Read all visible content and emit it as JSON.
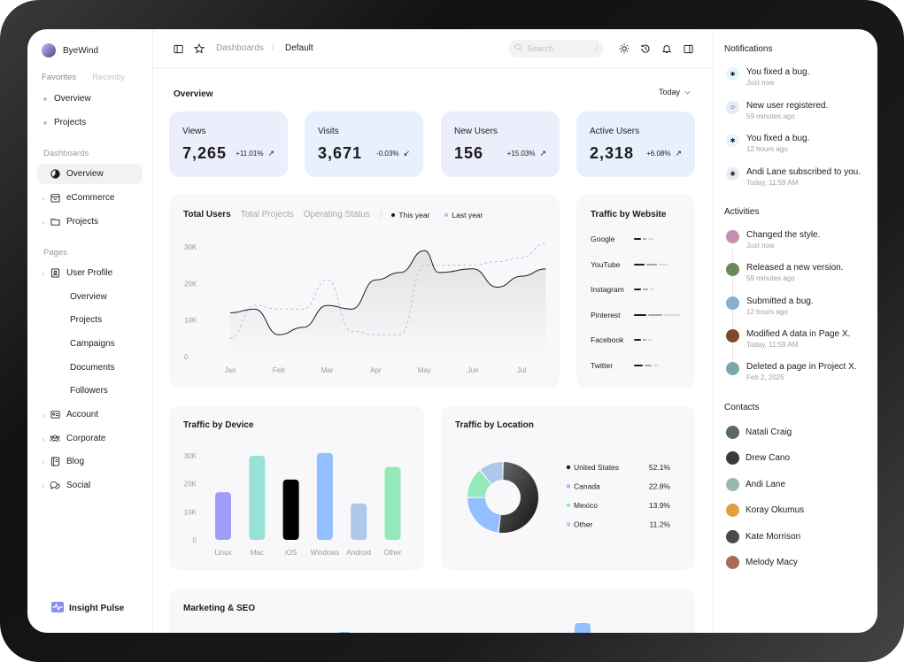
{
  "brand": {
    "name": "ByeWind"
  },
  "sidebar": {
    "tabs": [
      "Favorites",
      "Recently"
    ],
    "favorites": [
      "Overview",
      "Projects"
    ],
    "dashboards_title": "Dashboards",
    "dashboards": [
      {
        "label": "Overview",
        "icon": "pie-icon",
        "active": true
      },
      {
        "label": "eCommerce",
        "icon": "shop-icon"
      },
      {
        "label": "Projects",
        "icon": "folder-icon"
      }
    ],
    "pages_title": "Pages",
    "user_profile": {
      "label": "User Profile",
      "icon": "user-id-icon",
      "children": [
        "Overview",
        "Projects",
        "Campaigns",
        "Documents",
        "Followers"
      ]
    },
    "pages": [
      {
        "label": "Account",
        "icon": "id-card-icon"
      },
      {
        "label": "Corporate",
        "icon": "users-icon"
      },
      {
        "label": "Blog",
        "icon": "notebook-icon"
      },
      {
        "label": "Social",
        "icon": "chat-icon"
      }
    ],
    "footer": "Insight Pulse"
  },
  "header": {
    "breadcrumb": [
      "Dashboards",
      "/",
      "Default"
    ],
    "search_placeholder": "Search",
    "search_shortcut": "/"
  },
  "overview": {
    "title": "Overview",
    "range": "Today",
    "stats": [
      {
        "label": "Views",
        "value": "7,265",
        "change": "+11.01%",
        "trend": "up",
        "bg": "#edeefc"
      },
      {
        "label": "Visits",
        "value": "3,671",
        "change": "-0.03%",
        "trend": "down",
        "bg": "#e6f1fd"
      },
      {
        "label": "New Users",
        "value": "156",
        "change": "+15.03%",
        "trend": "up",
        "bg": "#edeefc"
      },
      {
        "label": "Active Users",
        "value": "2,318",
        "change": "+6.08%",
        "trend": "up",
        "bg": "#e6f1fd"
      }
    ]
  },
  "total_users": {
    "tabs": [
      "Total Users",
      "Total Projects",
      "Operating Status"
    ],
    "legend": [
      "This year",
      "Last year"
    ],
    "chart_data": {
      "type": "line",
      "x": [
        "Jan",
        "Feb",
        "Mar",
        "Apr",
        "May",
        "Jun",
        "Jul"
      ],
      "ylim": [
        0,
        30000
      ],
      "yticks": [
        "0",
        "10K",
        "20K",
        "30K"
      ],
      "series": [
        {
          "name": "This year",
          "x": [
            0,
            0.5,
            1,
            1.5,
            2,
            2.5,
            3,
            3.5,
            4,
            4.3,
            5,
            5.5,
            6,
            6.5
          ],
          "values": [
            12000,
            13000,
            6000,
            8000,
            14000,
            13000,
            21000,
            23000,
            29000,
            23000,
            24000,
            19000,
            22000,
            24000
          ],
          "color": "#1c1c1c"
        },
        {
          "name": "Last year",
          "x": [
            0,
            0.5,
            1,
            1.5,
            2,
            2.5,
            3,
            3.5,
            4,
            4.3,
            5,
            5.5,
            6,
            6.5
          ],
          "values": [
            5000,
            14000,
            13000,
            13000,
            21000,
            7000,
            6000,
            6000,
            25000,
            25000,
            25000,
            26000,
            27000,
            31000
          ],
          "color": "#a8c5da"
        }
      ]
    }
  },
  "traffic_website": {
    "title": "Traffic by Website",
    "sites": [
      {
        "name": "Google",
        "bars": [
          8,
          4,
          6
        ]
      },
      {
        "name": "YouTube",
        "bars": [
          12,
          12,
          10
        ]
      },
      {
        "name": "Instagram",
        "bars": [
          8,
          6,
          4
        ]
      },
      {
        "name": "Pinterest",
        "bars": [
          14,
          16,
          18
        ]
      },
      {
        "name": "Facebook",
        "bars": [
          8,
          4,
          4
        ]
      },
      {
        "name": "Twitter",
        "bars": [
          10,
          8,
          6
        ]
      }
    ]
  },
  "traffic_device": {
    "title": "Traffic by Device",
    "chart_data": {
      "type": "bar",
      "categories": [
        "Linux",
        "Mac",
        "iOS",
        "Windows",
        "Android",
        "Other"
      ],
      "values": [
        17000,
        30000,
        21500,
        31000,
        13000,
        26000
      ],
      "colors": [
        "#9f9ff8",
        "#96e2d6",
        "#000000",
        "#92bfff",
        "#aec7ed",
        "#94e9b8"
      ],
      "ylim": [
        0,
        30000
      ],
      "yticks": [
        "0",
        "10K",
        "20K",
        "30K"
      ]
    }
  },
  "traffic_location": {
    "title": "Traffic by Location",
    "chart_data": {
      "type": "pie",
      "labels": [
        "United States",
        "Canada",
        "Mexico",
        "Other"
      ],
      "values": [
        52.1,
        22.8,
        13.9,
        11.2
      ],
      "display": [
        "52.1%",
        "22.8%",
        "13.9%",
        "11.2%"
      ],
      "colors": [
        "#1c1c1c",
        "#92bfff",
        "#94e9b8",
        "#aec7ed"
      ]
    }
  },
  "marketing": {
    "title": "Marketing & SEO"
  },
  "notifications": {
    "title": "Notifications",
    "items": [
      {
        "text": "You fixed a bug.",
        "time": "Just now",
        "icon": "bug-icon",
        "bg": "#e3f5ff"
      },
      {
        "text": "New user registered.",
        "time": "59 minutes ago",
        "icon": "user-icon",
        "bg": "#e5ecf6"
      },
      {
        "text": "You fixed a bug.",
        "time": "12 hours ago",
        "icon": "bug-icon",
        "bg": "#e3f5ff"
      },
      {
        "text": "Andi Lane subscribed to you.",
        "time": "Today, 11:59 AM",
        "icon": "broadcast-icon",
        "bg": "#e5ecf6"
      }
    ]
  },
  "activities": {
    "title": "Activities",
    "items": [
      {
        "text": "Changed the style.",
        "time": "Just now",
        "color": "#c48fb0"
      },
      {
        "text": "Released a new version.",
        "time": "59 minutes ago",
        "color": "#6a8a5a"
      },
      {
        "text": "Submitted a bug.",
        "time": "12 hours ago",
        "color": "#8aaed0"
      },
      {
        "text": "Modified A data in Page X.",
        "time": "Today, 11:59 AM",
        "color": "#7a4a2a"
      },
      {
        "text": "Deleted a page in Project X.",
        "time": "Feb 2, 2025",
        "color": "#7aa8a8"
      }
    ]
  },
  "contacts": {
    "title": "Contacts",
    "items": [
      {
        "name": "Natali Craig",
        "color": "#5a6a5a"
      },
      {
        "name": "Drew Cano",
        "color": "#3a3a3a"
      },
      {
        "name": "Andi Lane",
        "color": "#9ab8b0"
      },
      {
        "name": "Koray Okumus",
        "color": "#e0a040"
      },
      {
        "name": "Kate Morrison",
        "color": "#4a4a4a"
      },
      {
        "name": "Melody Macy",
        "color": "#a86a5a"
      }
    ]
  }
}
